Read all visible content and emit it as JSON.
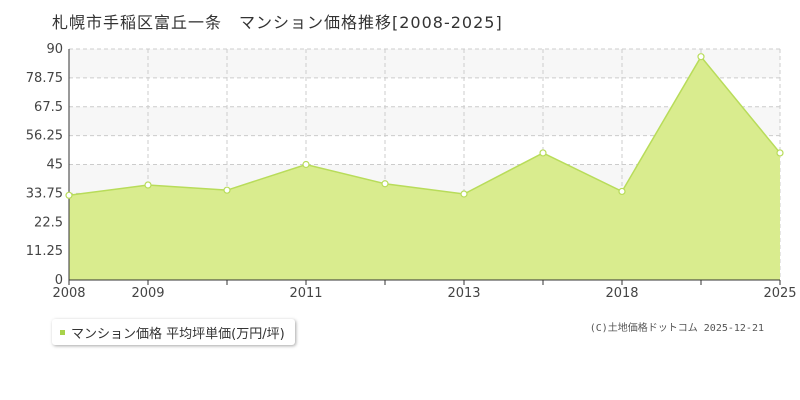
{
  "title": "札幌市手稲区富丘一条　マンション価格推移[2008-2025]",
  "legend": {
    "label": "マンション価格 平均坪単価(万円/坪)"
  },
  "credit": "(C)土地価格ドットコム 2025-12-21",
  "colors": {
    "line": "#b8dc5a",
    "fill": "#d9ec8e",
    "point_fill": "#ffffff",
    "grid": "#cccccc",
    "band": "#f7f7f7"
  },
  "chart_data": {
    "type": "area",
    "title": "札幌市手稲区富丘一条　マンション価格推移[2008-2025]",
    "xlabel": "",
    "ylabel": "",
    "ylim": [
      0,
      90
    ],
    "y_ticks": [
      "0",
      "11.25",
      "22.5",
      "33.75",
      "45",
      "56.25",
      "67.5",
      "78.75",
      "90"
    ],
    "x_tick_labels": [
      "2008",
      "2009",
      "",
      "2011",
      "",
      "2013",
      "",
      "2018",
      "",
      "2025"
    ],
    "grid": true,
    "legend_position": "bottom-left",
    "series": [
      {
        "name": "マンション価格 平均坪単価(万円/坪)",
        "values": [
          33,
          37,
          35,
          45,
          37.5,
          33.5,
          49.5,
          34.5,
          87,
          49.5
        ]
      }
    ]
  }
}
